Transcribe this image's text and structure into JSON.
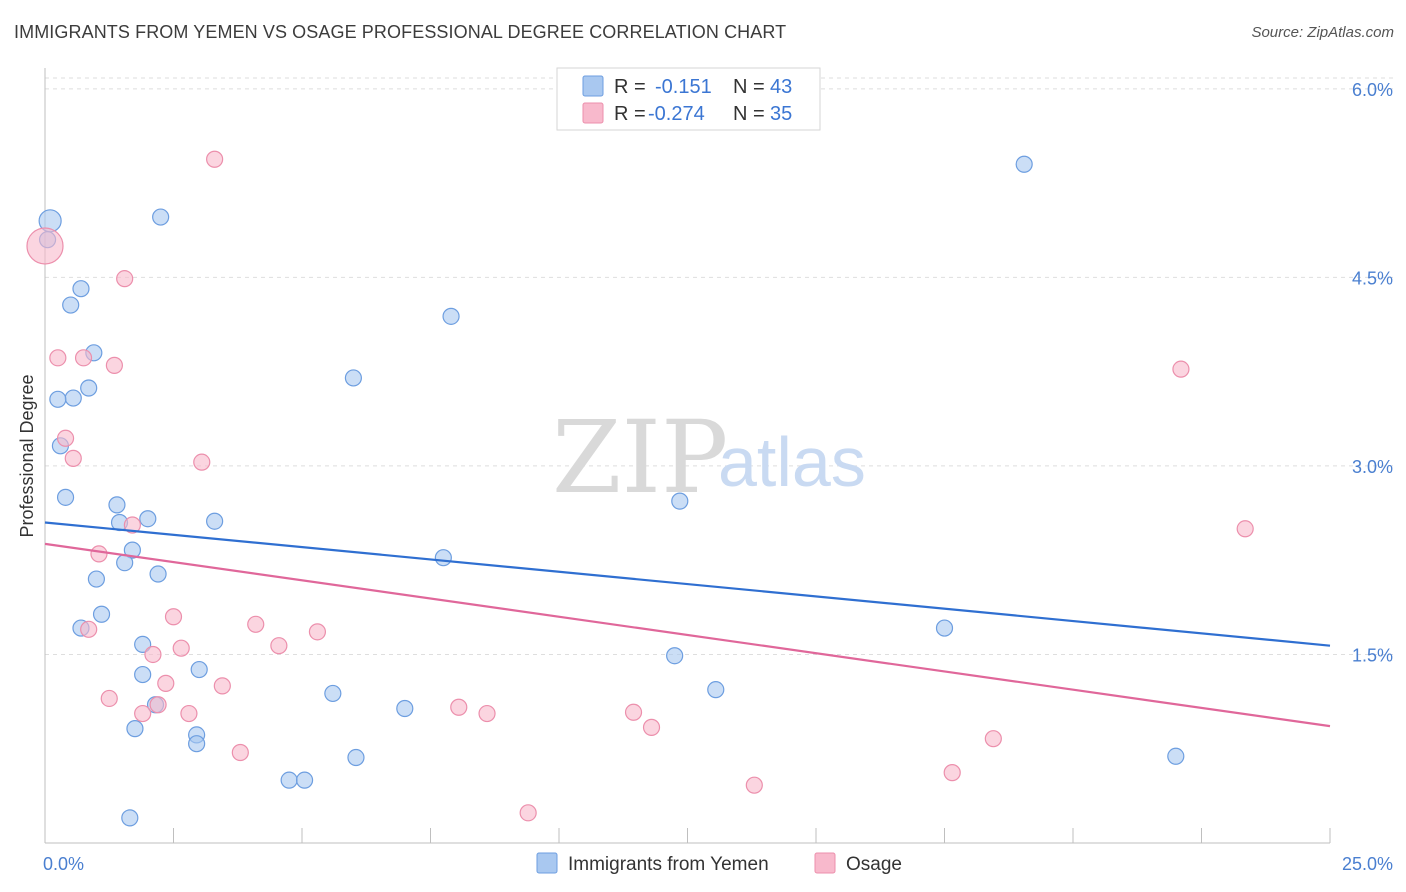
{
  "title": "IMMIGRANTS FROM YEMEN VS OSAGE PROFESSIONAL DEGREE CORRELATION CHART",
  "source": "Source: ZipAtlas.com",
  "watermark": {
    "zip": "ZIP",
    "atlas": "atlas"
  },
  "legend_top": {
    "rows": [
      {
        "r_label": "R =",
        "r_value": "-0.151",
        "n_label": "N =",
        "n_value": "43",
        "color": "#a9c8f0"
      },
      {
        "r_label": "R =",
        "r_value": "-0.274",
        "n_label": "N =",
        "n_value": "35",
        "color": "#f8b9cc"
      }
    ]
  },
  "chart_data": {
    "type": "scatter",
    "title": "IMMIGRANTS FROM YEMEN VS OSAGE PROFESSIONAL DEGREE CORRELATION CHART",
    "xlabel": "",
    "ylabel": "Professional Degree",
    "xlim": [
      0,
      25
    ],
    "ylim": [
      0,
      6.15
    ],
    "x_tick_labels": [
      "0.0%",
      "25.0%"
    ],
    "y_ticks": [
      1.5,
      3.0,
      4.5,
      6.0
    ],
    "y_tick_labels": [
      "1.5%",
      "3.0%",
      "4.5%",
      "6.0%"
    ],
    "grid": true,
    "legend_position": "bottom",
    "series": [
      {
        "name": "Immigrants from Yemen",
        "color": "#a9c8f0",
        "stroke": "#6d9ee0",
        "trend_color": "#2f6fd1",
        "trend": {
          "x": [
            0,
            25
          ],
          "y": [
            2.55,
            1.57
          ]
        },
        "points": [
          [
            0.1,
            4.95
          ],
          [
            0.05,
            4.8
          ],
          [
            0.7,
            4.41
          ],
          [
            0.5,
            4.28
          ],
          [
            0.95,
            3.9
          ],
          [
            0.85,
            3.62
          ],
          [
            0.55,
            3.54
          ],
          [
            0.25,
            3.53
          ],
          [
            0.3,
            3.16
          ],
          [
            0.4,
            2.75
          ],
          [
            1.4,
            2.69
          ],
          [
            2.0,
            2.58
          ],
          [
            1.45,
            2.55
          ],
          [
            3.3,
            2.56
          ],
          [
            1.7,
            2.33
          ],
          [
            1.55,
            2.23
          ],
          [
            2.2,
            2.14
          ],
          [
            1.0,
            2.1
          ],
          [
            1.1,
            1.82
          ],
          [
            0.7,
            1.71
          ],
          [
            1.9,
            1.58
          ],
          [
            3.0,
            1.38
          ],
          [
            1.9,
            1.34
          ],
          [
            2.15,
            1.1
          ],
          [
            1.75,
            0.91
          ],
          [
            2.95,
            0.86
          ],
          [
            2.95,
            0.79
          ],
          [
            5.6,
            1.19
          ],
          [
            6.05,
            0.68
          ],
          [
            7.0,
            1.07
          ],
          [
            4.75,
            0.5
          ],
          [
            5.05,
            0.5
          ],
          [
            1.65,
            0.2
          ],
          [
            2.25,
            4.98
          ],
          [
            6.0,
            3.7
          ],
          [
            7.9,
            4.19
          ],
          [
            7.75,
            2.27
          ],
          [
            12.35,
            2.72
          ],
          [
            12.25,
            1.49
          ],
          [
            13.05,
            1.22
          ],
          [
            17.5,
            1.71
          ],
          [
            19.05,
            5.4
          ],
          [
            22.0,
            0.69
          ]
        ]
      },
      {
        "name": "Osage",
        "color": "#f8b9cc",
        "stroke": "#ec8fac",
        "trend_color": "#e0679a",
        "trend": {
          "x": [
            0,
            25
          ],
          "y": [
            2.38,
            0.93
          ]
        },
        "points": [
          [
            0.0,
            4.75
          ],
          [
            3.3,
            5.44
          ],
          [
            1.55,
            4.49
          ],
          [
            0.25,
            3.86
          ],
          [
            0.75,
            3.86
          ],
          [
            1.35,
            3.8
          ],
          [
            0.4,
            3.22
          ],
          [
            0.55,
            3.06
          ],
          [
            3.05,
            3.03
          ],
          [
            1.7,
            2.53
          ],
          [
            1.05,
            2.3
          ],
          [
            2.5,
            1.8
          ],
          [
            0.85,
            1.7
          ],
          [
            4.1,
            1.74
          ],
          [
            5.3,
            1.68
          ],
          [
            2.65,
            1.55
          ],
          [
            4.55,
            1.57
          ],
          [
            2.1,
            1.5
          ],
          [
            2.35,
            1.27
          ],
          [
            3.45,
            1.25
          ],
          [
            1.25,
            1.15
          ],
          [
            2.2,
            1.1
          ],
          [
            1.9,
            1.03
          ],
          [
            2.8,
            1.03
          ],
          [
            3.8,
            0.72
          ],
          [
            8.05,
            1.08
          ],
          [
            8.6,
            1.03
          ],
          [
            11.45,
            1.04
          ],
          [
            11.8,
            0.92
          ],
          [
            9.4,
            0.24
          ],
          [
            13.8,
            0.46
          ],
          [
            17.65,
            0.56
          ],
          [
            18.45,
            0.83
          ],
          [
            22.1,
            3.77
          ],
          [
            23.35,
            2.5
          ]
        ]
      }
    ]
  }
}
